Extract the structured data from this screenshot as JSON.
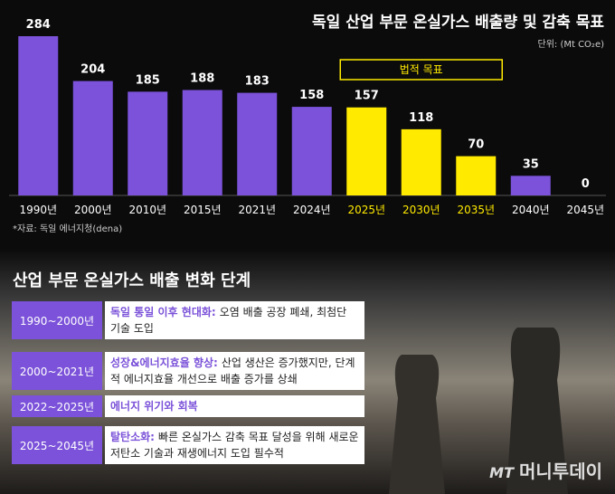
{
  "chart_data": {
    "type": "bar",
    "title": "독일 산업 부문 온실가스 배출량 및 감축 목표",
    "unit": "단위: (Mt CO₂e)",
    "categories": [
      "1990년",
      "2000년",
      "2010년",
      "2015년",
      "2021년",
      "2024년",
      "2025년",
      "2030년",
      "2035년",
      "2040년",
      "2045년"
    ],
    "values": [
      284,
      204,
      185,
      188,
      183,
      158,
      157,
      118,
      70,
      35,
      0
    ],
    "color": "#7b52d9",
    "colors": [
      "#7b52d9",
      "#7b52d9",
      "#7b52d9",
      "#7b52d9",
      "#7b52d9",
      "#7b52d9",
      "#ffea00",
      "#ffea00",
      "#ffea00",
      "#7b52d9",
      "#7b52d9"
    ],
    "highlight_label": "법적 목표",
    "source": "*자료: 독일 에너지청(dena)"
  },
  "stages": {
    "title": "산업 부문 온실가스 배출 변화 단계",
    "rows": [
      {
        "period": "1990~2000년",
        "heading": "독일 통일 이후 현대화:",
        "text": "오염 배출 공장 폐쇄, 최첨단 기술 도입"
      },
      {
        "period": "2000~2021년",
        "heading": "성장&에너지효율 향상:",
        "text": "산업 생산은 증가했지만, 단계적 에너지효율 개선으로 배출 증가를 상쇄"
      },
      {
        "period": "2022~2025년",
        "heading": "에너지 위기와 회복",
        "text": ""
      },
      {
        "period": "2025~2045년",
        "heading": "탈탄소화:",
        "text": "빠른 온실가스 감축 목표 달성을 위해 새로운 저탄소 기술과 재생에너지 도입 필수적"
      }
    ]
  },
  "brand": {
    "mark": "MT",
    "name": "머니투데이"
  }
}
